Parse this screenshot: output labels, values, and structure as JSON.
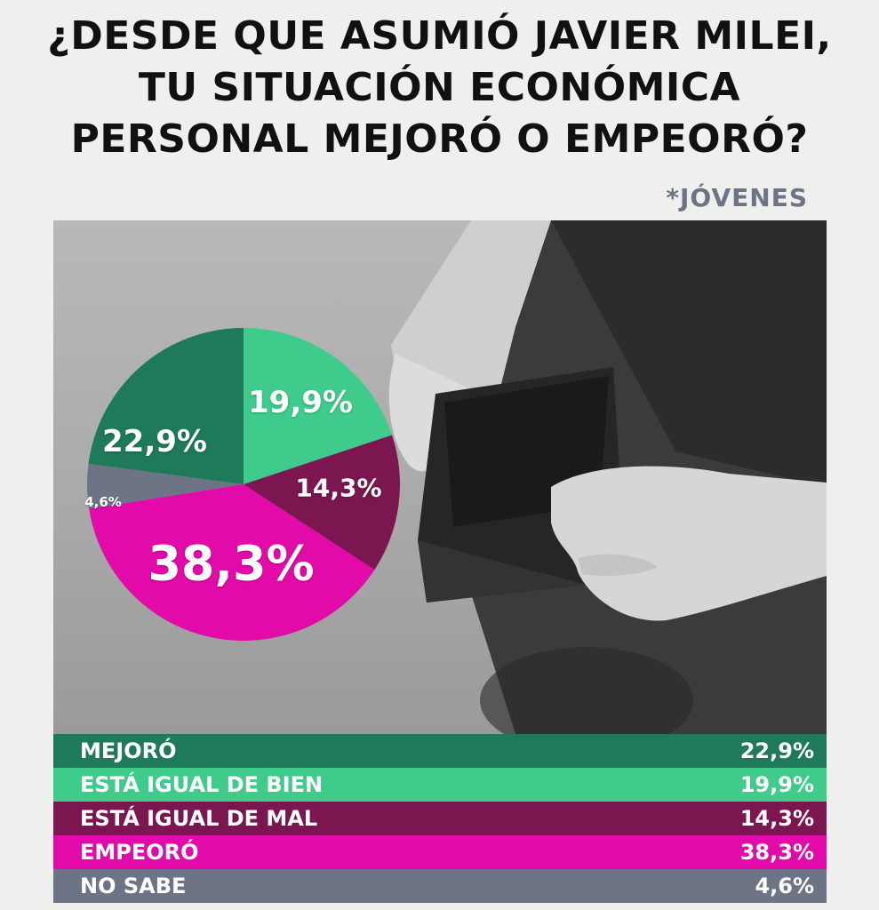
{
  "title_lines": [
    "¿DESDE QUE ASUMIÓ JAVIER MILEI,",
    "TU SITUACIÓN ECONÓMICA",
    "PERSONAL MEJORÓ O EMPEORÓ?"
  ],
  "subtitle": "*JÓVENES",
  "chart_data": {
    "type": "pie",
    "start_category": "ESTÁ IGUAL DE BIEN",
    "categories": [
      "MEJORÓ",
      "ESTÁ IGUAL DE BIEN",
      "ESTÁ IGUAL DE MAL",
      "EMPEORÓ",
      "NO SABE"
    ],
    "values": [
      22.9,
      19.9,
      14.3,
      38.3,
      4.6
    ],
    "value_labels": [
      "22,9%",
      "19,9%",
      "14,3%",
      "38,3%",
      "4,6%"
    ],
    "colors": [
      "#1e7a58",
      "#3ecb8c",
      "#7b1650",
      "#e20aa8",
      "#6d7485"
    ]
  },
  "legend_rows": [
    {
      "label": "MEJORÓ",
      "value": "22,9%",
      "color": "#1e7a58"
    },
    {
      "label": "ESTÁ IGUAL DE BIEN",
      "value": "19,9%",
      "color": "#3ecb8c"
    },
    {
      "label": "ESTÁ IGUAL DE MAL",
      "value": "14,3%",
      "color": "#7b1650"
    },
    {
      "label": "EMPEORÓ",
      "value": "38,3%",
      "color": "#e20aa8"
    },
    {
      "label": "NO SABE",
      "value": "4,6%",
      "color": "#6d7485"
    }
  ]
}
